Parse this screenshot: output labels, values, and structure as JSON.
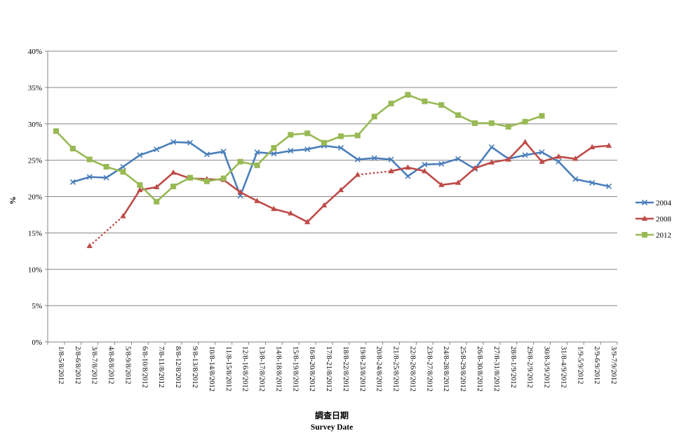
{
  "chart_data": {
    "type": "line",
    "title": "",
    "ylabel": "%",
    "xlabel_line1": "調查日期",
    "xlabel_line2": "Survey Date",
    "ylim": [
      0,
      40
    ],
    "yticks": [
      "0%",
      "5%",
      "10%",
      "15%",
      "20%",
      "25%",
      "30%",
      "35%",
      "40%"
    ],
    "grid": "horizontal",
    "legend_position": "right",
    "categories": [
      "1/8-5/8/2012",
      "2/8-6/8/2012",
      "3/8-7/8/2012",
      "4/8-8/8/2012",
      "5/8-9/8/2012",
      "6/8-10/8/2012",
      "7/8-11/8/2012",
      "8/8-12/8/2012",
      "9/8-13/8/2012",
      "10/8-14/8/2012",
      "11/8-15/8/2012",
      "12/8-16/8/2012",
      "13/8-17/8/2012",
      "14/8-18/8/2012",
      "15/8-19/8/2012",
      "16/8-20/8/2012",
      "17/8-21/8/2012",
      "18/8-22/8/2012",
      "19/8-23/8/2012",
      "20/8-24/8/2012",
      "21/8-25/8/2012",
      "22/8-26/8/2012",
      "23/8-27/8/2012",
      "24/8-28/8/2012",
      "25/8-29/8/2012",
      "26/8-30/8/2012",
      "27/8-31/8/2012",
      "28/8-1/9/2012",
      "29/8-2/9/2012",
      "30/8-3/9/2012",
      "31/8-4/9/2012",
      "1/9-5/9/2012",
      "2/9-6/9/2012",
      "3/9-7/9/2012"
    ],
    "series": [
      {
        "name": "2004",
        "color": "#4a7ebb",
        "marker": "x",
        "values": [
          null,
          22.0,
          22.7,
          22.6,
          24.1,
          25.7,
          26.5,
          27.5,
          27.4,
          25.8,
          26.2,
          20.1,
          26.1,
          25.9,
          26.3,
          26.5,
          27.0,
          26.7,
          25.1,
          25.3,
          25.1,
          22.8,
          24.4,
          24.5,
          25.2,
          23.8,
          26.8,
          25.2,
          25.7,
          26.1,
          24.8,
          22.4,
          21.9,
          21.4
        ]
      },
      {
        "name": "2008",
        "color": "#be4b48",
        "marker": "triangle",
        "values": [
          null,
          null,
          13.2,
          null,
          17.3,
          20.9,
          21.3,
          23.3,
          22.5,
          22.4,
          22.3,
          20.6,
          19.4,
          18.3,
          17.7,
          16.5,
          18.8,
          20.9,
          23.0,
          null,
          23.5,
          24.0,
          23.5,
          21.6,
          21.9,
          23.9,
          24.7,
          25.1,
          27.5,
          24.8,
          25.5,
          25.2,
          26.8,
          27.0
        ],
        "dotted_segments": [
          [
            2,
            4
          ],
          [
            18,
            20
          ]
        ]
      },
      {
        "name": "2012",
        "color": "#98b954",
        "marker": "square",
        "values": [
          29.0,
          26.6,
          25.1,
          24.1,
          23.4,
          21.6,
          19.3,
          21.4,
          22.6,
          22.1,
          22.5,
          24.8,
          24.3,
          26.7,
          28.5,
          28.7,
          27.4,
          28.3,
          28.4,
          31.0,
          32.8,
          34.0,
          33.1,
          32.6,
          31.2,
          30.1,
          30.1,
          29.6,
          30.3,
          31.1,
          null,
          null,
          null,
          null
        ]
      }
    ]
  }
}
